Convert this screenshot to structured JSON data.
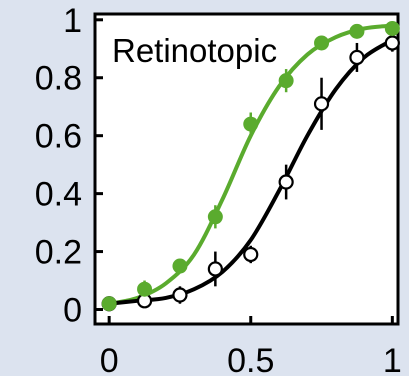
{
  "colors": {
    "background": "#dce3ef",
    "plot_background": "#ffffff",
    "green_series": "#5aab2e",
    "black_series": "#000000"
  },
  "chart_data": {
    "type": "scatter",
    "title": "Retinotopic",
    "xlabel": "",
    "ylabel": "",
    "xlim": [
      -0.05,
      1.02
    ],
    "ylim": [
      -0.05,
      1.02
    ],
    "x_ticks": [
      0,
      0.5,
      1
    ],
    "x_tick_labels": [
      "0",
      "0.5",
      "1"
    ],
    "y_ticks": [
      0,
      0.2,
      0.4,
      0.6,
      0.8,
      1
    ],
    "y_tick_labels": [
      "0",
      "0.2",
      "0.4",
      "0.6",
      "0.8",
      "1"
    ],
    "grid": false,
    "legend": "none",
    "series": [
      {
        "marker": "filled-circle",
        "color": "#5aab2e",
        "x": [
          0,
          0.125,
          0.25,
          0.375,
          0.5,
          0.625,
          0.75,
          0.875,
          1
        ],
        "y": [
          0.02,
          0.07,
          0.15,
          0.32,
          0.64,
          0.79,
          0.92,
          0.96,
          0.97
        ],
        "err": [
          0.01,
          0.03,
          0.02,
          0.04,
          0.04,
          0.04,
          0.02,
          0.02,
          0.01
        ],
        "fit": [
          [
            0,
            0.02
          ],
          [
            0.1,
            0.04
          ],
          [
            0.2,
            0.09
          ],
          [
            0.3,
            0.19
          ],
          [
            0.4,
            0.38
          ],
          [
            0.5,
            0.6
          ],
          [
            0.6,
            0.77
          ],
          [
            0.7,
            0.88
          ],
          [
            0.8,
            0.94
          ],
          [
            0.9,
            0.97
          ],
          [
            1,
            0.98
          ]
        ]
      },
      {
        "marker": "open-circle",
        "color": "#000000",
        "x": [
          0,
          0.125,
          0.25,
          0.375,
          0.5,
          0.625,
          0.75,
          0.875,
          1
        ],
        "y": [
          0.02,
          0.03,
          0.05,
          0.14,
          0.19,
          0.44,
          0.71,
          0.87,
          0.92
        ],
        "err": [
          0.01,
          0.02,
          0.03,
          0.06,
          0.03,
          0.06,
          0.09,
          0.05,
          0.03
        ],
        "fit": [
          [
            0,
            0.02
          ],
          [
            0.1,
            0.03
          ],
          [
            0.2,
            0.04
          ],
          [
            0.3,
            0.07
          ],
          [
            0.4,
            0.13
          ],
          [
            0.5,
            0.24
          ],
          [
            0.6,
            0.41
          ],
          [
            0.7,
            0.6
          ],
          [
            0.8,
            0.76
          ],
          [
            0.9,
            0.87
          ],
          [
            1,
            0.93
          ]
        ]
      }
    ]
  }
}
